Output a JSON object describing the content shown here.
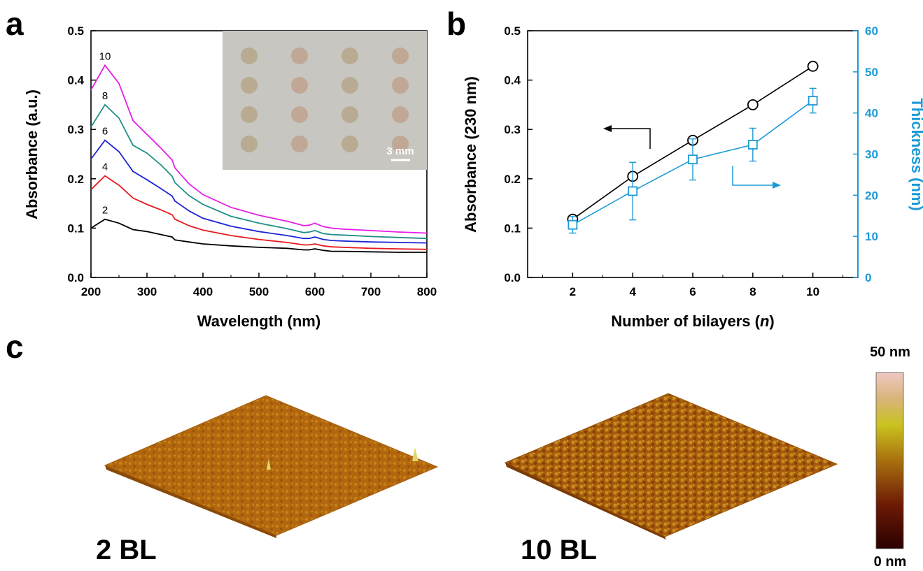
{
  "panels": {
    "a": "a",
    "b": "b",
    "c": "c"
  },
  "chart_data": [
    {
      "type": "line",
      "xlabel": "Wavelength (nm)",
      "ylabel": "Absorbance (a.u.)",
      "xlim": [
        200,
        800
      ],
      "ylim": [
        0,
        0.5
      ],
      "xticks": [
        "200",
        "300",
        "400",
        "500",
        "600",
        "700",
        "800"
      ],
      "yticks": [
        "0.0",
        "0.1",
        "0.2",
        "0.3",
        "0.4",
        "0.5"
      ],
      "x": [
        200,
        225,
        250,
        275,
        300,
        325,
        345,
        350,
        375,
        400,
        450,
        500,
        550,
        580,
        590,
        600,
        615,
        630,
        650,
        700,
        750,
        800
      ],
      "series": [
        {
          "name": "2",
          "color": "#000000",
          "values": [
            0.1,
            0.118,
            0.11,
            0.097,
            0.093,
            0.087,
            0.082,
            0.076,
            0.072,
            0.068,
            0.064,
            0.061,
            0.059,
            0.056,
            0.056,
            0.058,
            0.055,
            0.053,
            0.053,
            0.052,
            0.051,
            0.051
          ]
        },
        {
          "name": "4",
          "color": "#e8191f",
          "values": [
            0.178,
            0.206,
            0.187,
            0.161,
            0.148,
            0.137,
            0.127,
            0.118,
            0.105,
            0.096,
            0.085,
            0.077,
            0.071,
            0.066,
            0.066,
            0.068,
            0.064,
            0.062,
            0.061,
            0.059,
            0.058,
            0.057
          ]
        },
        {
          "name": "6",
          "color": "#1d24d6",
          "values": [
            0.24,
            0.278,
            0.255,
            0.215,
            0.198,
            0.18,
            0.165,
            0.155,
            0.135,
            0.12,
            0.104,
            0.093,
            0.085,
            0.079,
            0.079,
            0.082,
            0.077,
            0.075,
            0.074,
            0.072,
            0.071,
            0.07
          ]
        },
        {
          "name": "8",
          "color": "#1f8f85",
          "values": [
            0.305,
            0.35,
            0.323,
            0.268,
            0.252,
            0.228,
            0.205,
            0.192,
            0.166,
            0.148,
            0.124,
            0.11,
            0.099,
            0.091,
            0.092,
            0.095,
            0.089,
            0.087,
            0.086,
            0.083,
            0.081,
            0.079
          ]
        },
        {
          "name": "10",
          "color": "#e51ee8",
          "values": [
            0.38,
            0.43,
            0.393,
            0.318,
            0.29,
            0.262,
            0.238,
            0.222,
            0.19,
            0.168,
            0.142,
            0.126,
            0.114,
            0.105,
            0.106,
            0.11,
            0.103,
            0.1,
            0.098,
            0.095,
            0.092,
            0.09
          ]
        }
      ],
      "inset": {
        "scale_bar_label": "3 mm",
        "rows": 4,
        "cols": 4
      }
    },
    {
      "type": "line",
      "xlabel_main": "Number of bilayers (",
      "xlabel_italic": "n",
      "xlabel_end": ")",
      "ylabel_left": "Absorbance (230 nm)",
      "ylabel_right": "Thickness (nm)",
      "x": [
        2,
        4,
        6,
        8,
        10
      ],
      "xlim": [
        0.5,
        11.5
      ],
      "xticks": [
        "2",
        "4",
        "6",
        "8",
        "10"
      ],
      "ylim_left": [
        0,
        0.5
      ],
      "yticks_left": [
        "0.0",
        "0.1",
        "0.2",
        "0.3",
        "0.4",
        "0.5"
      ],
      "ylim_right": [
        0,
        60
      ],
      "yticks_right": [
        "0",
        "10",
        "20",
        "30",
        "40",
        "50",
        "60"
      ],
      "series": [
        {
          "axis": "left",
          "color": "#000000",
          "marker": "circle",
          "values": [
            0.118,
            0.205,
            0.278,
            0.35,
            0.428
          ]
        },
        {
          "axis": "right",
          "color": "#1c9ad6",
          "marker": "square",
          "values": [
            12.8,
            21.0,
            28.7,
            32.3,
            43.0
          ],
          "errors": [
            2.0,
            7.0,
            5.0,
            4.0,
            3.0
          ]
        }
      ]
    }
  ],
  "afm": {
    "left_label": "2 BL",
    "right_label": "10 BL",
    "scale_top": "50 nm",
    "scale_bottom": "0 nm"
  }
}
